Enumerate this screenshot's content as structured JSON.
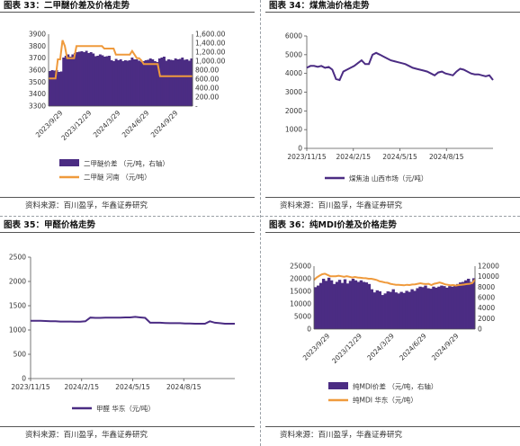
{
  "panels": [
    {
      "title": "图表 33：二甲醚价差及价格走势",
      "source": "资料来源：百川盈孚，华鑫证券研究"
    },
    {
      "title": "图表 34：煤焦油价格走势",
      "source": "资料来源：百川盈孚，华鑫证券研究"
    },
    {
      "title": "图表 35：甲醛价格走势",
      "source": "资料来源：百川盈孚，华鑫证券研究"
    },
    {
      "title": "图表 36：纯MDI价差及价格走势",
      "source": "资料来源：百川盈孚，华鑫证券研究"
    }
  ],
  "colors": {
    "bars": "#4b2c83",
    "orange": "#ef9a3c",
    "purple": "#4b2c83"
  },
  "chart_data": [
    {
      "type": "bar+line",
      "title": "",
      "x_tick_labels": [
        "2023/9/29",
        "2023/12/29",
        "2024/3/29",
        "2024/6/29",
        "2024/9/29"
      ],
      "left_axis": {
        "range": [
          3300,
          3900
        ],
        "ticks": [
          "3300",
          "3400",
          "3500",
          "3600",
          "3700",
          "3800",
          "3900"
        ]
      },
      "right_axis": {
        "range": [
          0,
          1600
        ],
        "ticks": [
          "-",
          "200.00",
          "400.00",
          "600.00",
          "800.00",
          "1,000.00",
          "1,200.00",
          "1,400.00",
          "1,600.00"
        ]
      },
      "series": [
        {
          "name": "二甲醚价差  （元/吨，右轴）",
          "kind": "bar",
          "axis": "right",
          "values": [
            780,
            800,
            790,
            800,
            760,
            770,
            1080,
            1120,
            1150,
            1100,
            1150,
            1180,
            1200,
            1210,
            1220,
            1200,
            1230,
            1180,
            1200,
            1170,
            1110,
            1120,
            1150,
            1130,
            1100,
            1110,
            1120,
            1020,
            1000,
            1050,
            1020,
            1040,
            1000,
            1020,
            1010,
            1020,
            1080,
            1040,
            1040,
            1010,
            990,
            1000,
            1020,
            1030,
            1060,
            1040,
            1000,
            980,
            1060,
            1080,
            1100,
            1010,
            1040,
            1030,
            1020,
            1060,
            1040,
            1050,
            1080,
            1030,
            1040,
            1010,
            1060
          ]
        },
        {
          "name": "二甲醚 河南 （元/吨）",
          "kind": "line",
          "axis": "left",
          "values": [
            3530,
            3530,
            3530,
            3530,
            3690,
            3690,
            3850,
            3800,
            3700,
            3700,
            3700,
            3700,
            3800,
            3800,
            3800,
            3800,
            3800,
            3800,
            3800,
            3800,
            3800,
            3800,
            3800,
            3800,
            3780,
            3780,
            3780,
            3780,
            3780,
            3730,
            3730,
            3730,
            3730,
            3730,
            3730,
            3730,
            3760,
            3730,
            3700,
            3700,
            3680,
            3650,
            3650,
            3650,
            3650,
            3650,
            3650,
            3650,
            3550,
            3550,
            3550,
            3550,
            3550,
            3550,
            3550,
            3550,
            3550,
            3550,
            3550,
            3550,
            3550,
            3550,
            3550
          ]
        }
      ]
    },
    {
      "type": "line",
      "title": "",
      "x_tick_labels": [
        "2023/11/15",
        "2024/2/15",
        "2024/5/15",
        "2024/8/15"
      ],
      "y_axis": {
        "range": [
          0,
          6000
        ],
        "ticks": [
          "0",
          "1000",
          "2000",
          "3000",
          "4000",
          "5000",
          "6000"
        ]
      },
      "series": [
        {
          "name": "煤焦油 山西市场（元/吨）",
          "values": [
            4300,
            4400,
            4400,
            4350,
            4400,
            4300,
            4350,
            4200,
            3700,
            3650,
            4100,
            4200,
            4300,
            4400,
            4550,
            4700,
            4500,
            4500,
            5000,
            5100,
            5000,
            4900,
            4800,
            4700,
            4650,
            4600,
            4550,
            4500,
            4400,
            4300,
            4250,
            4200,
            4150,
            4100,
            4000,
            3900,
            4050,
            4100,
            4000,
            3950,
            3900,
            4100,
            4250,
            4200,
            4100,
            4000,
            3950,
            3950,
            3900,
            3850,
            3900,
            3650
          ]
        }
      ]
    },
    {
      "type": "line",
      "title": "",
      "x_tick_labels": [
        "2023/11/15",
        "2024/2/15",
        "2024/5/15",
        "2024/8/15"
      ],
      "y_axis": {
        "range": [
          0,
          2500
        ],
        "ticks": [
          "0",
          "500",
          "1000",
          "1500",
          "2000",
          "2500"
        ]
      },
      "series": [
        {
          "name": "甲醛  华东（元/吨）",
          "values": [
            1190,
            1190,
            1190,
            1185,
            1180,
            1180,
            1175,
            1175,
            1175,
            1170,
            1170,
            1180,
            1255,
            1250,
            1250,
            1255,
            1255,
            1255,
            1255,
            1260,
            1260,
            1270,
            1260,
            1250,
            1150,
            1150,
            1150,
            1145,
            1140,
            1140,
            1140,
            1135,
            1135,
            1130,
            1130,
            1130,
            1180,
            1150,
            1140,
            1130,
            1130,
            1130
          ]
        }
      ]
    },
    {
      "type": "bar+line",
      "title": "",
      "x_tick_labels": [
        "2023/9/29",
        "2023/12/29",
        "2024/3/29",
        "2024/6/29",
        "2024/9/29"
      ],
      "left_axis": {
        "range": [
          0,
          25000
        ],
        "ticks": [
          "0",
          "5000",
          "10000",
          "15000",
          "20000",
          "25000"
        ]
      },
      "right_axis": {
        "range": [
          0,
          12000
        ],
        "ticks": [
          "0",
          "2000",
          "4000",
          "6000",
          "8000",
          "10000",
          "12000"
        ]
      },
      "series": [
        {
          "name": "纯MDI价差  （元/吨，右轴）",
          "kind": "bar",
          "axis": "right",
          "values": [
            8000,
            8300,
            8800,
            9600,
            9200,
            9800,
            9300,
            8600,
            9000,
            9400,
            8800,
            9500,
            8700,
            9200,
            9600,
            9300,
            9000,
            9300,
            9000,
            8900,
            8600,
            7600,
            7000,
            7400,
            7200,
            6500,
            6800,
            7200,
            7100,
            7600,
            7000,
            6800,
            7100,
            6900,
            7300,
            7100,
            7600,
            7300,
            7800,
            8100,
            8000,
            8300,
            7800,
            7700,
            8100,
            7900,
            8100,
            8300,
            8200,
            7900,
            8200,
            8100,
            8300,
            8600,
            8900,
            9000,
            9300,
            9600,
            9000,
            9700
          ]
        },
        {
          "name": "纯MDI  华东（元/吨）",
          "kind": "line",
          "axis": "left",
          "values": [
            19500,
            20500,
            21200,
            21800,
            22000,
            21500,
            21000,
            21000,
            21000,
            21200,
            21000,
            20800,
            21000,
            20800,
            20500,
            20700,
            20500,
            20400,
            20300,
            20200,
            20000,
            20000,
            19800,
            19500,
            19000,
            18800,
            18500,
            18400,
            18000,
            17800,
            17600,
            17600,
            17500,
            17400,
            17600,
            17500,
            17700,
            17800,
            18000,
            18200,
            18000,
            17900,
            18000,
            17500,
            18000,
            18200,
            18500,
            18200,
            17800,
            17600,
            17400,
            17500,
            17300,
            17500,
            17600,
            17700,
            17900,
            18000,
            18300,
            19700
          ]
        }
      ]
    }
  ]
}
